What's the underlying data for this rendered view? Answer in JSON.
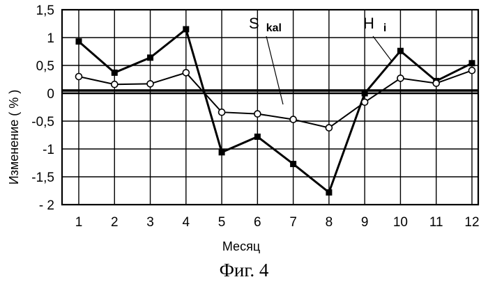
{
  "chart_data": {
    "type": "line",
    "xlabel": "Месяц",
    "ylabel": "Изменение ( % )",
    "categories": [
      "1",
      "2",
      "3",
      "4",
      "5",
      "6",
      "7",
      "8",
      "9",
      "10",
      "11",
      "12"
    ],
    "ylim": [
      -2,
      1.5
    ],
    "yticks": [
      "1,5",
      "1",
      "0,5",
      "0",
      "-0,5",
      "-1",
      "-1,5",
      "- 2"
    ],
    "ytick_values": [
      1.5,
      1,
      0.5,
      0,
      -0.5,
      -1,
      -1.5,
      -2
    ],
    "grid": true,
    "series": [
      {
        "name": "H i",
        "label_main": "H",
        "label_sub": "i",
        "marker": "filled-square",
        "values": [
          0.93,
          0.37,
          0.64,
          1.15,
          -1.06,
          -0.78,
          -1.27,
          -1.78,
          0.0,
          0.76,
          0.22,
          0.54
        ]
      },
      {
        "name": "S kal",
        "label_main": "S",
        "label_sub": "kal",
        "marker": "open-circle",
        "values": [
          0.3,
          0.16,
          0.17,
          0.37,
          -0.34,
          -0.37,
          -0.47,
          -0.62,
          -0.16,
          0.27,
          0.18,
          0.41
        ]
      }
    ],
    "reference_line": 0.05
  },
  "caption": "Фиг. 4",
  "colors": {
    "line": "#000000",
    "grid": "#000000",
    "background": "#ffffff"
  }
}
